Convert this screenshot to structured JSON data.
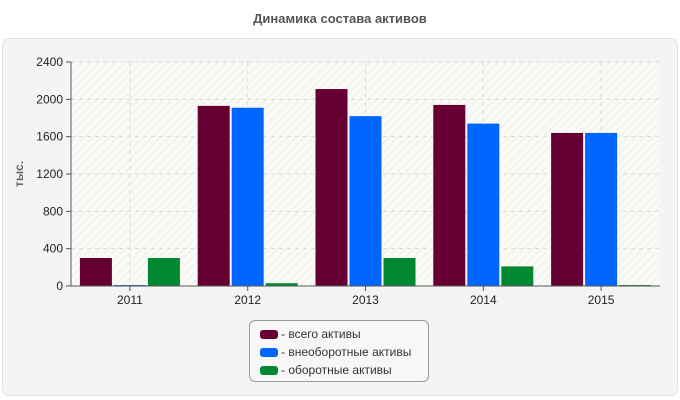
{
  "chart_data": {
    "type": "bar",
    "title": "Динамика состава активов",
    "ylabel": "тыс.",
    "xlabel": "",
    "categories": [
      "2011",
      "2012",
      "2013",
      "2014",
      "2015"
    ],
    "series": [
      {
        "name": "- всего активы",
        "color": "#660033",
        "values": [
          300,
          1930,
          2110,
          1940,
          1640
        ]
      },
      {
        "name": "- внеоборотные активы",
        "color": "#0066ff",
        "values": [
          10,
          1910,
          1820,
          1740,
          1640
        ]
      },
      {
        "name": "- оборотные активы",
        "color": "#008833",
        "values": [
          300,
          30,
          300,
          210,
          10
        ]
      }
    ],
    "ylim": [
      0,
      2400
    ],
    "yticks": [
      0,
      400,
      800,
      1200,
      1600,
      2000,
      2400
    ],
    "grid": true,
    "legend_position": "bottom"
  }
}
